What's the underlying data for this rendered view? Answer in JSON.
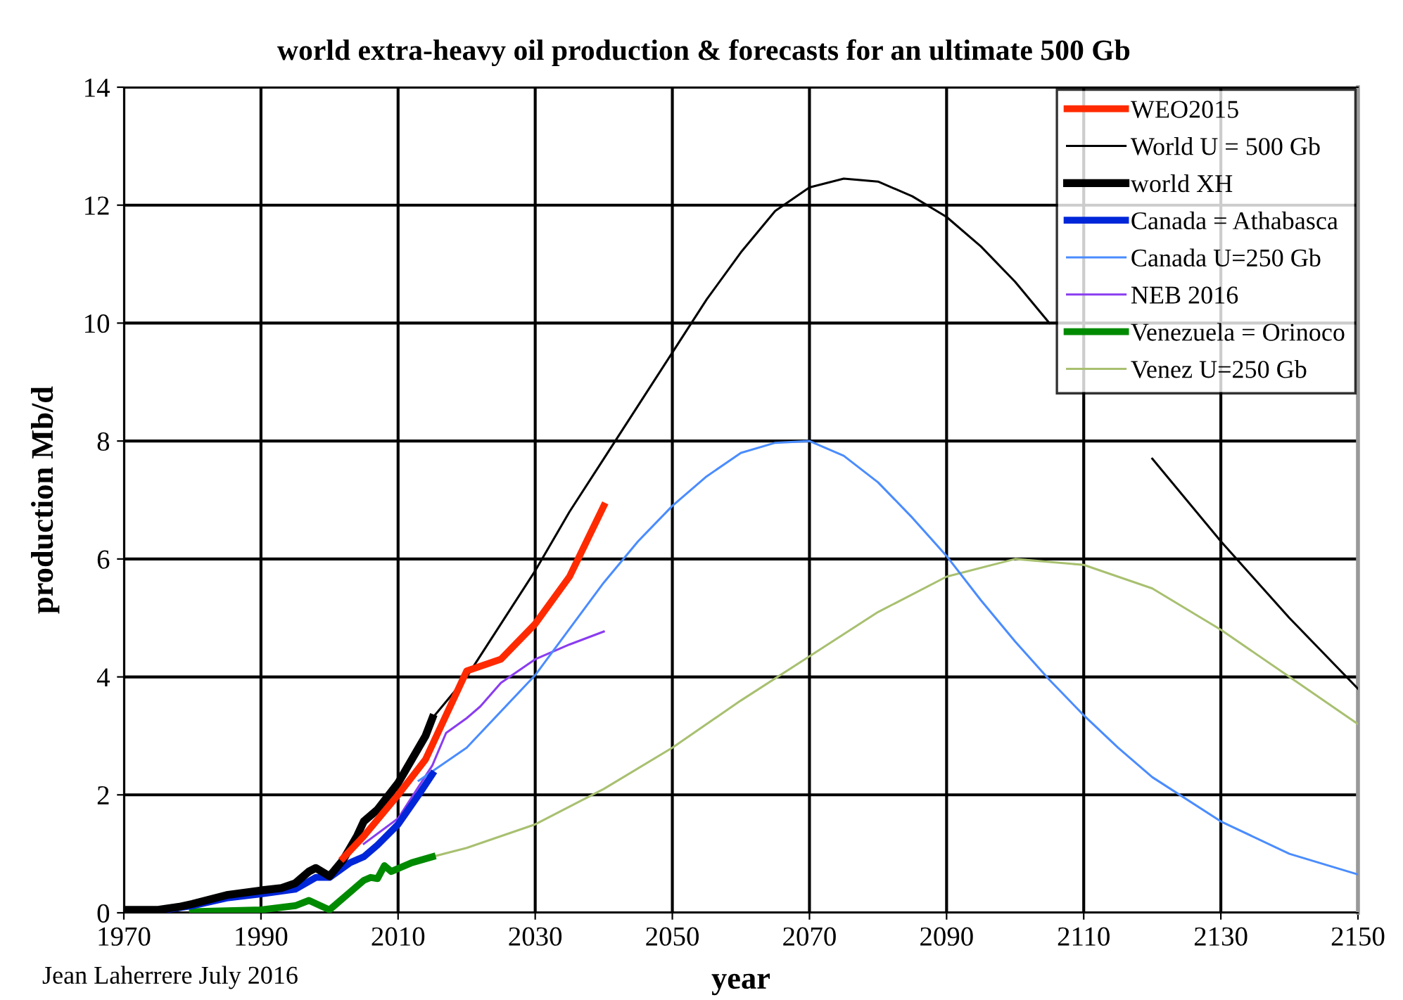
{
  "chart_data": {
    "type": "line",
    "title": "world extra-heavy oil production & forecasts for an ultimate 500 Gb",
    "xlabel": "year",
    "ylabel": "production Mb/d",
    "annotations": [
      "Jean Laherrere July 2016"
    ],
    "xlim": [
      1970,
      2150
    ],
    "xticks": [
      1970,
      1990,
      2010,
      2030,
      2050,
      2070,
      2090,
      2110,
      2130,
      2150
    ],
    "ylim": [
      0,
      14
    ],
    "yticks": [
      0,
      2,
      4,
      6,
      8,
      10,
      12,
      14
    ],
    "grid": true,
    "legend": "top right",
    "marker": "none",
    "line_style": "solid",
    "series": [
      {
        "name": "WEO2015",
        "color": "#ff2a00",
        "x": [
          2002,
          2005,
          2010,
          2014,
          2020,
          2025,
          2030,
          2035,
          2040
        ],
        "values": [
          0.93,
          1.3,
          2.0,
          2.6,
          4.1,
          4.3,
          4.9,
          5.7,
          6.9
        ]
      },
      {
        "name": "World U = 500 Gb",
        "color": "#000000",
        "x": [
          2015,
          2020,
          2025,
          2030,
          2035,
          2040,
          2045,
          2050,
          2055,
          2060,
          2065,
          2070,
          2075,
          2080,
          2085,
          2090,
          2095,
          2100,
          2105,
          2110,
          2115,
          2120,
          2130,
          2140,
          2150
        ],
        "values": [
          3.3,
          4.0,
          4.9,
          5.8,
          6.8,
          7.7,
          8.6,
          9.5,
          10.4,
          11.2,
          11.9,
          12.3,
          12.45,
          12.4,
          12.15,
          11.8,
          11.3,
          10.7,
          10.0,
          null,
          null,
          7.7,
          6.3,
          5.0,
          3.8
        ]
      },
      {
        "name": "world XH",
        "color": "#000000",
        "x": [
          1970,
          1975,
          1978,
          1980,
          1985,
          1990,
          1993,
          1995,
          1997,
          1998,
          2000,
          2002,
          2004,
          2005,
          2007,
          2010,
          2012,
          2014,
          2015
        ],
        "values": [
          0.05,
          0.05,
          0.1,
          0.15,
          0.3,
          0.38,
          0.42,
          0.5,
          0.7,
          0.76,
          0.62,
          0.9,
          1.3,
          1.55,
          1.75,
          2.2,
          2.6,
          3.0,
          3.3
        ]
      },
      {
        "name": "Canada = Athabasca",
        "color": "#0026d9",
        "x": [
          1970,
          1975,
          1980,
          1985,
          1990,
          1995,
          1998,
          2000,
          2003,
          2005,
          2007,
          2010,
          2013,
          2015
        ],
        "values": [
          0.02,
          0.03,
          0.12,
          0.25,
          0.32,
          0.4,
          0.6,
          0.6,
          0.85,
          0.95,
          1.15,
          1.5,
          2.0,
          2.35
        ]
      },
      {
        "name": "Canada U=250 Gb",
        "color": "#4a8cff",
        "x": [
          2013,
          2020,
          2030,
          2040,
          2045,
          2050,
          2055,
          2060,
          2065,
          2070,
          2075,
          2080,
          2085,
          2090,
          2095,
          2100,
          2105,
          2110,
          2115,
          2120,
          2130,
          2140,
          2150
        ],
        "values": [
          2.24,
          2.8,
          4.03,
          5.6,
          6.3,
          6.9,
          7.4,
          7.8,
          7.97,
          8.0,
          7.75,
          7.3,
          6.7,
          6.05,
          5.3,
          4.6,
          3.95,
          3.35,
          2.8,
          2.3,
          1.55,
          1.0,
          0.65
        ]
      },
      {
        "name": "NEB 2016",
        "color": "#8a3cf0",
        "x": [
          2005,
          2010,
          2015,
          2017,
          2020,
          2022,
          2025,
          2030,
          2035,
          2040
        ],
        "values": [
          1.17,
          1.6,
          2.5,
          3.05,
          3.3,
          3.5,
          3.9,
          4.3,
          4.55,
          4.77
        ]
      },
      {
        "name": "Venezuela = Orinoco",
        "color": "#008a00",
        "x": [
          1980,
          1990,
          1995,
          1997,
          2000,
          2003,
          2005,
          2006,
          2007,
          2008,
          2009,
          2012,
          2015
        ],
        "values": [
          0.02,
          0.05,
          0.12,
          0.21,
          0.05,
          0.35,
          0.55,
          0.6,
          0.58,
          0.8,
          0.7,
          0.85,
          0.95
        ]
      },
      {
        "name": "Venez U=250 Gb",
        "color": "#a8c070",
        "x": [
          2015,
          2020,
          2030,
          2040,
          2050,
          2060,
          2070,
          2080,
          2090,
          2100,
          2110,
          2120,
          2130,
          2140,
          2150
        ],
        "values": [
          0.95,
          1.1,
          1.5,
          2.1,
          2.8,
          3.6,
          4.35,
          5.1,
          5.7,
          6.0,
          5.9,
          5.5,
          4.8,
          4.0,
          3.2
        ]
      }
    ]
  }
}
